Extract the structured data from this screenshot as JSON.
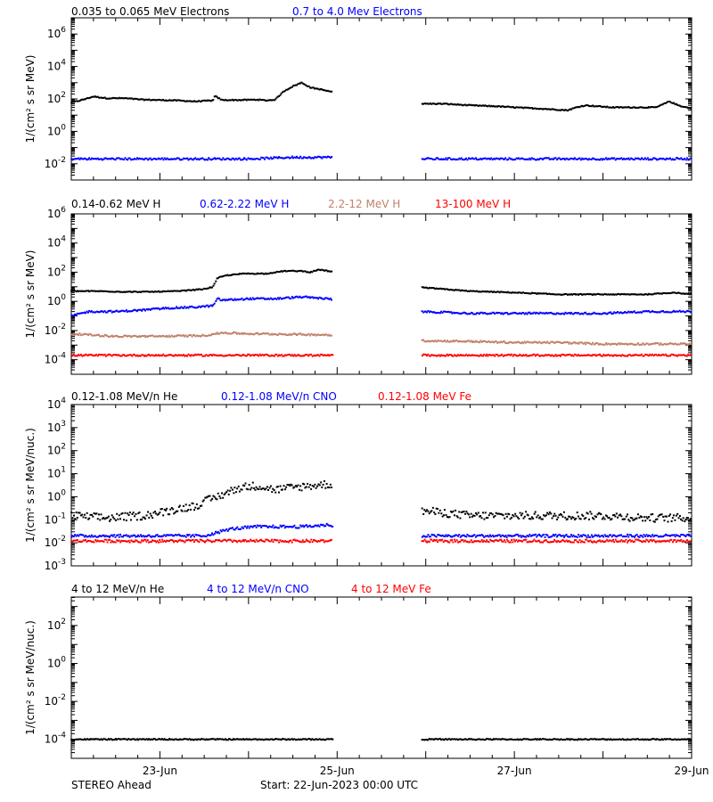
{
  "footer": {
    "left_label": "STEREO Ahead",
    "center_label": "Start: 22-Jun-2023 00:00 UTC"
  },
  "colors": {
    "black": "#000000",
    "blue": "#0000ff",
    "tan": "#c0806a",
    "red": "#ff0000"
  },
  "chart_data": [
    {
      "type": "scatter",
      "id": "electrons",
      "ylabel": "1/(cm² s sr MeV)",
      "yscale": "log",
      "ylim_exp": [
        -3,
        7
      ],
      "ytick_exp": [
        -2,
        0,
        2,
        4,
        6
      ],
      "x_unit": "days since 22-Jun-2023 00:00 UTC",
      "xlim": [
        0,
        7
      ],
      "xticks": [
        {
          "x": 1,
          "label": "23-Jun"
        },
        {
          "x": 3,
          "label": "25-Jun"
        },
        {
          "x": 5,
          "label": "27-Jun"
        },
        {
          "x": 7,
          "label": "29-Jun"
        }
      ],
      "data_gap": [
        2.95,
        3.95
      ],
      "series": [
        {
          "name": "0.035 to 0.065 MeV Electrons",
          "color": "#000000",
          "x": [
            0,
            0.1,
            0.25,
            0.4,
            0.6,
            0.8,
            1.0,
            1.2,
            1.4,
            1.6,
            1.62,
            1.7,
            1.9,
            2.1,
            2.2,
            2.3,
            2.4,
            2.5,
            2.6,
            2.7,
            2.8,
            2.9,
            3.95,
            4.2,
            4.5,
            4.8,
            5.0,
            5.3,
            5.6,
            5.7,
            5.8,
            6.1,
            6.4,
            6.6,
            6.75,
            6.85,
            7.0
          ],
          "y": [
            60,
            80,
            140,
            110,
            110,
            90,
            85,
            80,
            70,
            80,
            150,
            85,
            85,
            90,
            80,
            90,
            300,
            600,
            1000,
            500,
            400,
            300,
            50,
            50,
            40,
            35,
            30,
            25,
            20,
            30,
            40,
            30,
            30,
            30,
            70,
            40,
            25
          ]
        },
        {
          "name": "0.7 to 4.0 Mev Electrons",
          "color": "#0000ff",
          "x": [
            0,
            0.5,
            1.0,
            1.5,
            2.0,
            2.5,
            2.9,
            3.95,
            4.5,
            5.0,
            5.5,
            6.0,
            6.5,
            7.0
          ],
          "y": [
            0.02,
            0.02,
            0.02,
            0.02,
            0.02,
            0.025,
            0.025,
            0.02,
            0.02,
            0.02,
            0.02,
            0.02,
            0.02,
            0.02
          ]
        }
      ]
    },
    {
      "type": "scatter",
      "id": "protons",
      "ylabel": "1/(cm² s sr MeV)",
      "yscale": "log",
      "ylim_exp": [
        -5,
        6
      ],
      "ytick_exp": [
        -4,
        -2,
        0,
        2,
        4,
        6
      ],
      "x_unit": "days since 22-Jun-2023 00:00 UTC",
      "xlim": [
        0,
        7
      ],
      "data_gap": [
        2.95,
        3.95
      ],
      "series": [
        {
          "name": "0.14-0.62 MeV H",
          "color": "#000000",
          "x": [
            0,
            0.3,
            0.6,
            0.9,
            1.2,
            1.5,
            1.6,
            1.65,
            1.75,
            1.95,
            2.2,
            2.4,
            2.6,
            2.7,
            2.8,
            2.9,
            3.95,
            4.5,
            5.0,
            5.5,
            6.0,
            6.5,
            6.8,
            7.0
          ],
          "y": [
            5,
            5,
            4.5,
            4.5,
            5,
            7,
            10,
            40,
            60,
            80,
            80,
            120,
            120,
            100,
            150,
            120,
            9,
            5,
            4,
            3,
            3,
            3,
            4,
            3
          ]
        },
        {
          "name": "0.62-2.22 MeV H",
          "color": "#0000ff",
          "x": [
            0,
            0.2,
            0.5,
            0.8,
            1.1,
            1.4,
            1.6,
            1.65,
            1.7,
            2.0,
            2.3,
            2.6,
            2.9,
            3.95,
            4.5,
            5.0,
            5.5,
            6.0,
            6.5,
            7.0
          ],
          "y": [
            0.1,
            0.2,
            0.2,
            0.25,
            0.35,
            0.4,
            0.5,
            1.5,
            1.2,
            1.5,
            1.5,
            2,
            1.5,
            0.2,
            0.15,
            0.15,
            0.15,
            0.15,
            0.2,
            0.2
          ]
        },
        {
          "name": "2.2-12 MeV H",
          "color": "#c0806a",
          "x": [
            0,
            0.5,
            1.0,
            1.5,
            1.7,
            2.0,
            2.5,
            2.9,
            3.95,
            4.5,
            5.0,
            5.5,
            6.0,
            6.5,
            7.0
          ],
          "y": [
            0.006,
            0.004,
            0.004,
            0.0045,
            0.007,
            0.006,
            0.0055,
            0.005,
            0.002,
            0.0018,
            0.0015,
            0.0015,
            0.0012,
            0.0012,
            0.0012
          ]
        },
        {
          "name": "13-100 MeV H",
          "color": "#ff0000",
          "x": [
            0,
            0.5,
            1.0,
            1.5,
            2.0,
            2.5,
            2.9,
            3.95,
            4.5,
            5.0,
            5.5,
            6.0,
            6.5,
            7.0
          ],
          "y": [
            0.0002,
            0.0002,
            0.0002,
            0.0002,
            0.0002,
            0.0002,
            0.0002,
            0.0002,
            0.0002,
            0.0002,
            0.0002,
            0.0002,
            0.0002,
            0.0002
          ]
        }
      ]
    },
    {
      "type": "scatter",
      "id": "heavy-low",
      "ylabel": "1/(cm² s sr MeV/nuc.)",
      "yscale": "log",
      "ylim_exp": [
        -3,
        4
      ],
      "ytick_exp": [
        -3,
        -2,
        -1,
        0,
        1,
        2,
        3,
        4
      ],
      "x_unit": "days since 22-Jun-2023 00:00 UTC",
      "xlim": [
        0,
        7
      ],
      "data_gap": [
        2.95,
        3.95
      ],
      "series": [
        {
          "name": "0.12-1.08 MeV/n He",
          "color": "#000000",
          "x": [
            0,
            0.4,
            0.8,
            1.0,
            1.2,
            1.4,
            1.5,
            1.7,
            1.9,
            2.1,
            2.3,
            2.5,
            2.7,
            2.9,
            3.95,
            4.2,
            4.5,
            5.0,
            5.5,
            6.0,
            6.5,
            7.0
          ],
          "y": [
            0.15,
            0.12,
            0.15,
            0.2,
            0.3,
            0.4,
            0.6,
            1.2,
            2.5,
            3.0,
            2.0,
            2.5,
            3.0,
            3.5,
            0.25,
            0.2,
            0.15,
            0.15,
            0.15,
            0.15,
            0.12,
            0.12
          ]
        },
        {
          "name": "0.12-1.08 MeV/n CNO",
          "color": "#0000ff",
          "x": [
            0,
            0.5,
            1.0,
            1.5,
            1.8,
            2.1,
            2.4,
            2.6,
            2.9,
            3.95,
            4.5,
            5.0,
            5.5,
            6.0,
            6.5,
            7.0
          ],
          "y": [
            0.02,
            0.02,
            0.02,
            0.02,
            0.04,
            0.05,
            0.05,
            0.05,
            0.06,
            0.02,
            0.02,
            0.02,
            0.02,
            0.02,
            0.02,
            0.02
          ]
        },
        {
          "name": "0.12-1.08 MeV Fe",
          "color": "#ff0000",
          "x": [
            0,
            0.5,
            1.0,
            1.5,
            2.0,
            2.5,
            2.9,
            3.95,
            4.5,
            5.0,
            5.5,
            6.0,
            6.5,
            7.0
          ],
          "y": [
            0.012,
            0.012,
            0.012,
            0.012,
            0.012,
            0.012,
            0.012,
            0.012,
            0.012,
            0.012,
            0.012,
            0.012,
            0.012,
            0.012
          ]
        }
      ]
    },
    {
      "type": "scatter",
      "id": "heavy-high",
      "ylabel": "1/(cm² s sr MeV/nuc.)",
      "yscale": "log",
      "ylim_exp": [
        -5,
        3.5
      ],
      "ytick_exp": [
        -4,
        -2,
        0,
        2
      ],
      "x_unit": "days since 22-Jun-2023 00:00 UTC",
      "xlim": [
        0,
        7
      ],
      "data_gap": [
        2.95,
        3.95
      ],
      "series": [
        {
          "name": "4 to 12 MeV/n He",
          "color": "#000000",
          "x": [
            0,
            0.5,
            1.0,
            1.5,
            2.0,
            2.5,
            2.9,
            3.95,
            4.5,
            5.0,
            5.5,
            6.0,
            6.5,
            7.0
          ],
          "y": [
            0.0001,
            0.0001,
            0.0001,
            0.0001,
            0.0001,
            0.0001,
            0.0001,
            0.0001,
            0.0001,
            0.0001,
            0.0001,
            0.0001,
            0.0001,
            0.0001
          ]
        },
        {
          "name": "4 to 12 MeV/n CNO",
          "color": "#0000ff",
          "x": [],
          "y": []
        },
        {
          "name": "4 to 12 MeV Fe",
          "color": "#ff0000",
          "x": [],
          "y": []
        }
      ]
    }
  ]
}
